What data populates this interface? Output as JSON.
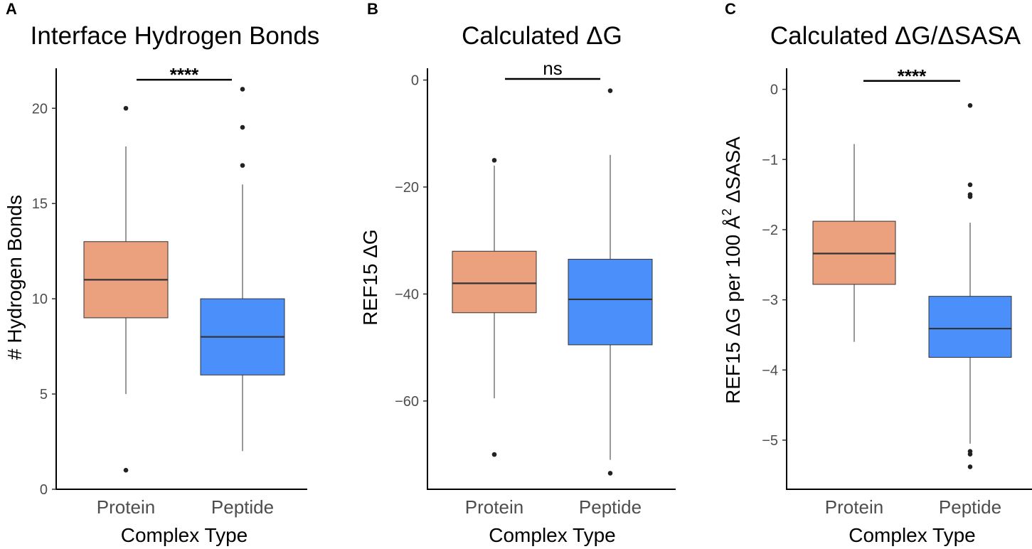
{
  "colors": {
    "protein": "#EBA07E",
    "peptide": "#4B8FFA",
    "outline": "#333333",
    "axis": "#000000"
  },
  "chart_data": [
    {
      "panel": "A",
      "type": "boxplot",
      "title": "Interface Hydrogen Bonds",
      "xlabel": "Complex Type",
      "ylabel": "# Hydrogen Bonds",
      "ylim": [
        0,
        22.1
      ],
      "yticks": [
        0,
        5,
        10,
        15,
        20
      ],
      "categories": [
        "Protein",
        "Peptide"
      ],
      "boxes": [
        {
          "name": "Protein",
          "q1": 9,
          "median": 11,
          "q3": 13,
          "whisker_low": 5,
          "whisker_high": 18,
          "outliers": [
            1,
            20
          ]
        },
        {
          "name": "Peptide",
          "q1": 6,
          "median": 8,
          "q3": 10,
          "whisker_low": 2,
          "whisker_high": 16,
          "outliers": [
            17,
            19,
            21
          ]
        }
      ],
      "significance": {
        "label": "****",
        "y": 21.5
      }
    },
    {
      "panel": "B",
      "type": "boxplot",
      "title": "Calculated ΔG",
      "xlabel": "Complex Type",
      "ylabel": "REF15 ΔG",
      "ylim": [
        -76.5,
        2.2
      ],
      "yticks": [
        0,
        -20,
        -40,
        -60
      ],
      "categories": [
        "Protein",
        "Peptide"
      ],
      "boxes": [
        {
          "name": "Protein",
          "q1": -43.5,
          "median": -38,
          "q3": -32,
          "whisker_low": -59.5,
          "whisker_high": -16,
          "outliers": [
            -15,
            -70
          ]
        },
        {
          "name": "Peptide",
          "q1": -49.5,
          "median": -41,
          "q3": -33.5,
          "whisker_low": -71,
          "whisker_high": -14,
          "outliers": [
            -2,
            -73.5
          ]
        }
      ],
      "significance": {
        "label": "ns",
        "y": 0.2
      }
    },
    {
      "panel": "C",
      "type": "boxplot",
      "title": "Calculated ΔG/ΔSASA",
      "xlabel": "Complex Type",
      "ylabel_main": "REF15 ΔG per 100 Å",
      "ylabel_sup": "2",
      "ylabel_tail": " ΔSASA",
      "ylim": [
        -5.7,
        0.3
      ],
      "yticks": [
        0,
        -1,
        -2,
        -3,
        -4,
        -5
      ],
      "categories": [
        "Protein",
        "Peptide"
      ],
      "boxes": [
        {
          "name": "Protein",
          "q1": -2.78,
          "median": -2.34,
          "q3": -1.88,
          "whisker_low": -3.6,
          "whisker_high": -0.78,
          "outliers": []
        },
        {
          "name": "Peptide",
          "q1": -3.82,
          "median": -3.41,
          "q3": -2.95,
          "whisker_low": -5.05,
          "whisker_high": -1.9,
          "outliers": [
            -0.23,
            -1.36,
            -1.5,
            -1.53,
            -5.16,
            -5.2,
            -5.38
          ]
        }
      ],
      "significance": {
        "label": "****",
        "y": 0.12
      }
    }
  ]
}
